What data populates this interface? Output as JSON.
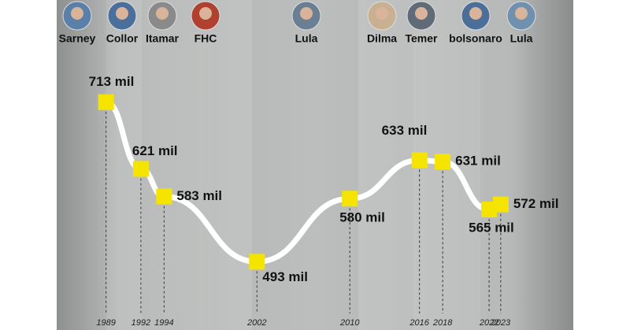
{
  "chart_data": {
    "type": "line",
    "annotations": [
      "Sarney",
      "Collor",
      "Itamar",
      "FHC",
      "Lula",
      "Dilma",
      "Temer",
      "bolsonaro",
      "Lula"
    ],
    "x": [
      1989,
      1992,
      1994,
      2002,
      2010,
      2016,
      2018,
      2022,
      2023
    ],
    "series": [
      {
        "color": "#ffffff",
        "values": [
          713,
          621,
          583,
          493,
          580,
          633,
          631,
          565,
          572
        ],
        "value_labels": [
          "713 mil",
          "621 mil",
          "583 mil",
          "493 mil",
          "580 mil",
          "633 mil",
          "631 mil",
          "565 mil",
          "572 mil"
        ]
      }
    ],
    "marker_color": "#f5e400",
    "xlim": [
      1980,
      2034
    ],
    "ylim": [
      400,
      780
    ],
    "xticks": [
      1989,
      1992,
      1994,
      2002,
      2010,
      2016,
      2018,
      2022,
      2023
    ]
  }
}
